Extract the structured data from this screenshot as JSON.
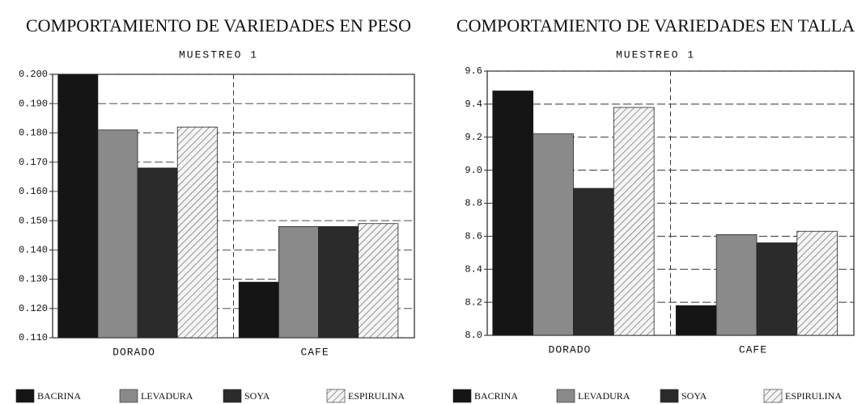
{
  "chart_data": [
    {
      "type": "bar",
      "title": "COMPORTAMIENTO DE VARIEDADES EN PESO",
      "subtitle": "MUESTREO 1",
      "categories": [
        "DORADO",
        "CAFE"
      ],
      "series": [
        {
          "name": "BACRINA",
          "color": "#151515",
          "values": [
            0.2,
            0.129
          ]
        },
        {
          "name": "LEVADURA",
          "color": "#8a8a8a",
          "values": [
            0.181,
            0.148
          ]
        },
        {
          "name": "SOYA",
          "color": "#2b2b2b",
          "values": [
            0.168,
            0.148
          ]
        },
        {
          "name": "ESPIRULINA",
          "color": "#f4f4f4",
          "hatch": true,
          "values": [
            0.182,
            0.149
          ]
        }
      ],
      "ylim": [
        0.11,
        0.2
      ],
      "yticks": [
        {
          "value": 0.11,
          "label": "0.110"
        },
        {
          "value": 0.12,
          "label": "0.120"
        },
        {
          "value": 0.13,
          "label": "0.130"
        },
        {
          "value": 0.14,
          "label": "0.140"
        },
        {
          "value": 0.15,
          "label": "0.150"
        },
        {
          "value": 0.16,
          "label": "0.160"
        },
        {
          "value": 0.17,
          "label": "0.170"
        },
        {
          "value": 0.18,
          "label": "0.180"
        },
        {
          "value": 0.19,
          "label": "0.190"
        },
        {
          "value": 0.2,
          "label": "0.200"
        }
      ],
      "grid": true
    },
    {
      "type": "bar",
      "title": "COMPORTAMIENTO DE VARIEDADES EN TALLA",
      "subtitle": "MUESTREO 1",
      "categories": [
        "DORADO",
        "CAFE"
      ],
      "series": [
        {
          "name": "BACRINA",
          "color": "#151515",
          "values": [
            9.48,
            8.18
          ]
        },
        {
          "name": "LEVADURA",
          "color": "#8a8a8a",
          "values": [
            9.22,
            8.61
          ]
        },
        {
          "name": "SOYA",
          "color": "#2b2b2b",
          "values": [
            8.89,
            8.56
          ]
        },
        {
          "name": "ESPIRULINA",
          "color": "#f4f4f4",
          "hatch": true,
          "values": [
            9.38,
            8.63
          ]
        }
      ],
      "ylim": [
        8.0,
        9.6
      ],
      "yticks": [
        {
          "value": 8.0,
          "label": "8.0"
        },
        8.2,
        8.4,
        8.6,
        8.8,
        {
          "value": 9.0,
          "label": "9.0"
        },
        9.2,
        9.4,
        9.6
      ],
      "grid": true
    }
  ]
}
